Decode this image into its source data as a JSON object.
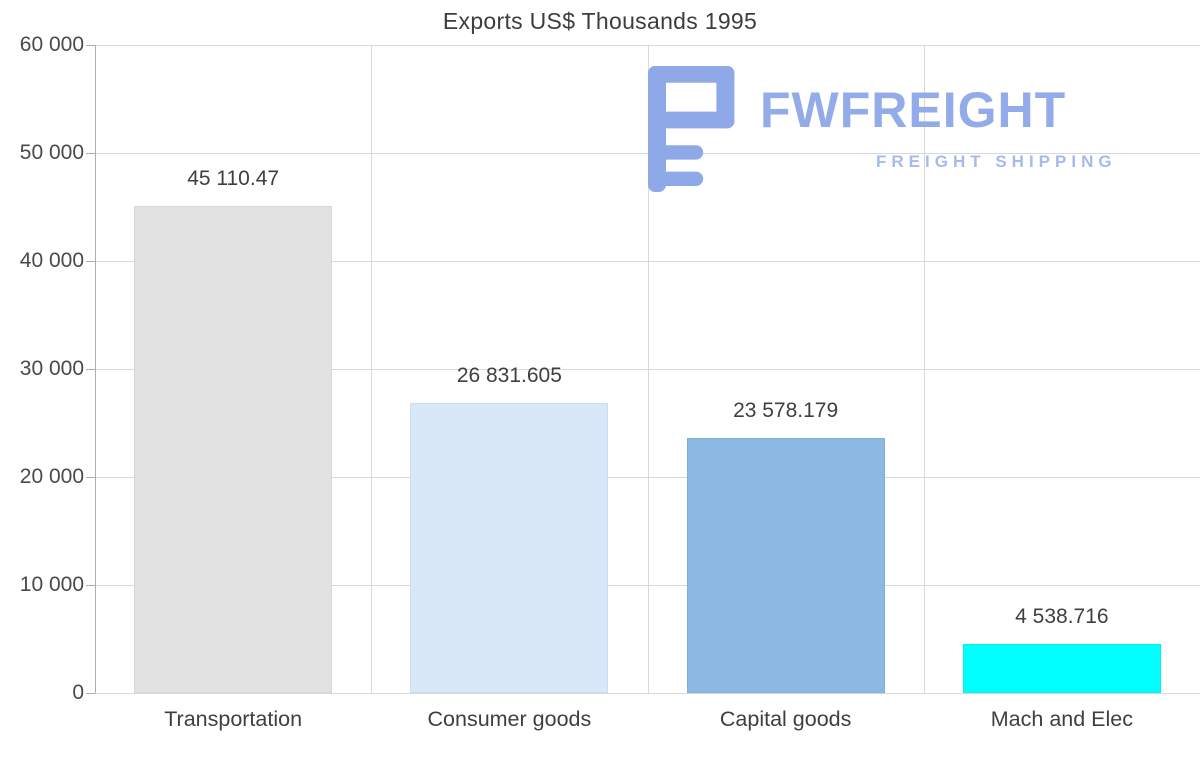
{
  "chart_data": {
    "type": "bar",
    "title": "Exports US$ Thousands 1995",
    "categories": [
      "Transportation",
      "Consumer goods",
      "Capital goods",
      "Mach and Elec"
    ],
    "values": [
      45110.47,
      26831.605,
      23578.179,
      4538.716
    ],
    "value_labels": [
      "45 110.47",
      "26 831.605",
      "23 578.179",
      "4 538.716"
    ],
    "bar_colors": [
      "#e2e2e2",
      "#d9e8f8",
      "#8bb9e2",
      "#00ffff"
    ],
    "bar_border_colors": [
      "#d6d6d6",
      "#cbdff4",
      "#7fb0dd",
      "#00f0f0"
    ],
    "ylim": [
      0,
      60000
    ],
    "ytick_step": 10000,
    "ytick_labels": [
      "0",
      "10 000",
      "20 000",
      "30 000",
      "40 000",
      "50 000",
      "60 000"
    ],
    "grid": true,
    "legend": "none",
    "xlabel": "",
    "ylabel": ""
  },
  "logo": {
    "name": "FWFREIGHT",
    "tagline": "FREIGHT SHIPPING",
    "color": "#8fa9e8"
  }
}
